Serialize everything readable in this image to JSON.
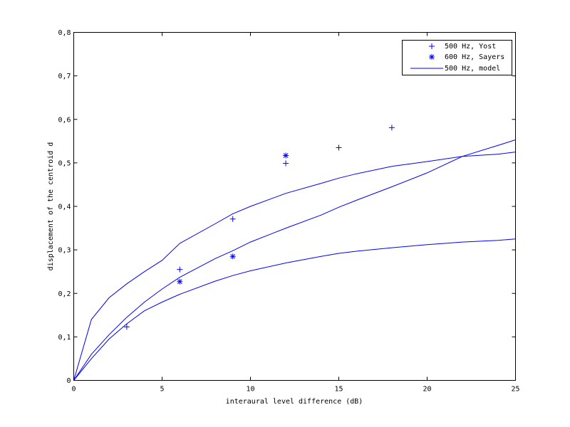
{
  "chart_data": {
    "type": "line",
    "title": "",
    "xlabel": "interaural level difference (dB)",
    "ylabel": "displacement of the centroid d",
    "xlim": [
      0,
      25
    ],
    "ylim": [
      0,
      0.8
    ],
    "xticks": [
      0,
      5,
      10,
      15,
      20,
      25
    ],
    "xtick_labels": [
      "0",
      "5",
      "10",
      "15",
      "20",
      "25"
    ],
    "yticks": [
      0,
      0.1,
      0.2,
      0.3,
      0.4,
      0.5,
      0.6,
      0.7,
      0.8
    ],
    "ytick_labels": [
      "0",
      "0,1",
      "0,2",
      "0,3",
      "0,4",
      "0,5",
      "0,6",
      "0,7",
      "0,8"
    ],
    "grid": false,
    "legend_position": "upper right",
    "color": "#0000ff",
    "series": [
      {
        "name": "500 Hz, Yost",
        "marker": "+",
        "kind": "scatter",
        "x": [
          3,
          6,
          9,
          12,
          15,
          18
        ],
        "y": [
          0.123,
          0.255,
          0.371,
          0.499,
          0.535,
          0.581
        ]
      },
      {
        "name": "600 Hz, Sayers",
        "marker": "*",
        "kind": "scatter",
        "x": [
          6,
          9,
          12
        ],
        "y": [
          0.227,
          0.285,
          0.517
        ]
      },
      {
        "name": "500 Hz, model",
        "marker": "",
        "kind": "line",
        "curves": [
          {
            "x": [
              0,
              1,
              2,
              3,
              4,
              5,
              6,
              8,
              9,
              10,
              12,
              14,
              15,
              16,
              18,
              20,
              22,
              24,
              25
            ],
            "y": [
              0,
              0.14,
              0.19,
              0.222,
              0.25,
              0.276,
              0.315,
              0.36,
              0.383,
              0.4,
              0.43,
              0.453,
              0.465,
              0.475,
              0.492,
              0.503,
              0.515,
              0.52,
              0.525
            ]
          },
          {
            "x": [
              0,
              1,
              2,
              3,
              4,
              5,
              6,
              8,
              9,
              10,
              12,
              14,
              15,
              16,
              18,
              20,
              22,
              24,
              25
            ],
            "y": [
              0,
              0.06,
              0.105,
              0.145,
              0.18,
              0.21,
              0.237,
              0.28,
              0.298,
              0.318,
              0.35,
              0.38,
              0.398,
              0.414,
              0.445,
              0.477,
              0.515,
              0.54,
              0.553
            ]
          },
          {
            "x": [
              0,
              1,
              2,
              3,
              4,
              5,
              6,
              8,
              9,
              10,
              12,
              14,
              15,
              16,
              18,
              20,
              22,
              24,
              25
            ],
            "y": [
              0,
              0.05,
              0.095,
              0.13,
              0.16,
              0.18,
              0.198,
              0.228,
              0.241,
              0.252,
              0.27,
              0.285,
              0.292,
              0.297,
              0.305,
              0.312,
              0.318,
              0.322,
              0.325
            ]
          }
        ]
      }
    ]
  }
}
